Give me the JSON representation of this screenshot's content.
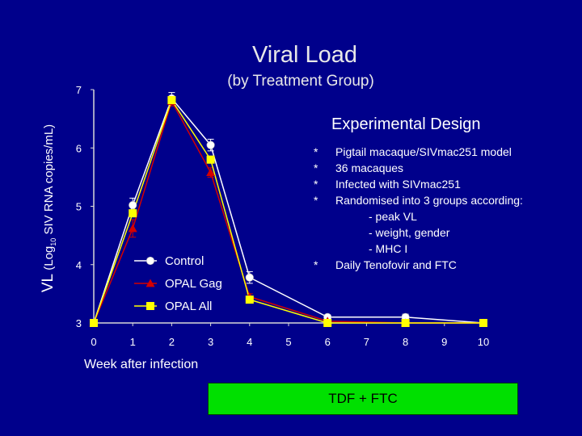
{
  "chart_data": {
    "type": "line",
    "title": "Viral Load",
    "subtitle": "(by Treatment Group)",
    "ylabel": {
      "prefix": "VL",
      "log": "(Log",
      "sub": "10",
      "rest": " SIV RNA copies/mL)"
    },
    "xlabel": "Week after infection",
    "xlim": [
      0,
      10
    ],
    "ylim": [
      3,
      7
    ],
    "x_ticks": [
      0,
      1,
      2,
      3,
      4,
      5,
      6,
      7,
      8,
      9,
      10
    ],
    "y_ticks": [
      3,
      4,
      5,
      6,
      7
    ],
    "legend_position": "lower-left",
    "grid": false,
    "series": [
      {
        "name": "Control",
        "marker": "circle",
        "color": "#ffffff",
        "x": [
          0,
          1,
          2,
          3,
          4,
          6,
          8,
          10
        ],
        "y": [
          3.0,
          5.02,
          6.85,
          6.05,
          3.78,
          3.1,
          3.1,
          3.0
        ],
        "err": [
          0,
          0.12,
          0.1,
          0.1,
          0.1,
          0.04,
          0.05,
          0
        ]
      },
      {
        "name": "OPAL Gag",
        "marker": "triangle",
        "color": "#d40000",
        "x": [
          0,
          1,
          2,
          3,
          4,
          6,
          8,
          10
        ],
        "y": [
          3.0,
          4.62,
          6.8,
          5.58,
          3.45,
          3.03,
          3.0,
          3.0
        ],
        "err": [
          0,
          0.15,
          0.08,
          0.08,
          0.05,
          0.03,
          0.03,
          0
        ]
      },
      {
        "name": "OPAL All",
        "marker": "square",
        "color": "#ffff00",
        "x": [
          0,
          1,
          2,
          3,
          4,
          6,
          8,
          10
        ],
        "y": [
          3.0,
          4.88,
          6.82,
          5.8,
          3.4,
          3.0,
          3.0,
          3.0
        ],
        "err": [
          0,
          0.06,
          0.05,
          0.06,
          0.03,
          0.02,
          0.02,
          0
        ]
      }
    ],
    "colors": {
      "axis": "#d8d8d8",
      "background": "#00008b"
    }
  },
  "design": {
    "title": "Experimental Design",
    "items": [
      {
        "bullet": "*",
        "text": "Pigtail macaque/SIVmac251 model"
      },
      {
        "bullet": "*",
        "text": "36 macaques"
      },
      {
        "bullet": "*",
        "text": "Infected with SIVmac251"
      },
      {
        "bullet": "*",
        "text": "Randomised into 3 groups according:"
      }
    ],
    "sub_items": [
      "- peak VL",
      "- weight, gender",
      "- MHC I"
    ],
    "last_item": {
      "bullet": "*",
      "text": "Daily Tenofovir and FTC"
    }
  },
  "treatment_bar": {
    "label": "TDF + FTC",
    "color": "#00e000"
  }
}
